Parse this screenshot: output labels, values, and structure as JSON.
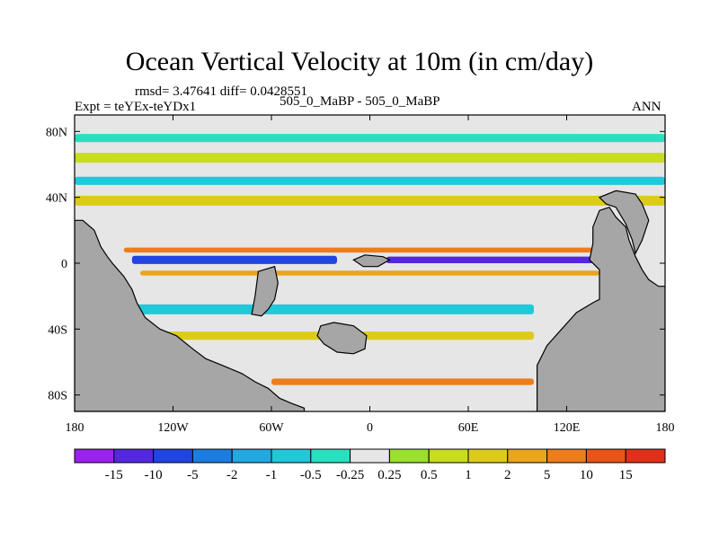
{
  "chart_data": {
    "type": "heatmap",
    "title": "Ocean Vertical Velocity at 10m (in cm/day)",
    "stats": "rmsd= 3.47641 diff= 0.0428551",
    "experiment": "Expt = teYEx-teYDx1",
    "case": "505_0_MaBP - 505_0_MaBP",
    "season": "ANN",
    "xlim": [
      -180,
      180
    ],
    "ylim": [
      -90,
      90
    ],
    "x_ticks": [
      {
        "value": -180,
        "label": "180"
      },
      {
        "value": -120,
        "label": "120W"
      },
      {
        "value": -60,
        "label": "60W"
      },
      {
        "value": 0,
        "label": "0"
      },
      {
        "value": 60,
        "label": "60E"
      },
      {
        "value": 120,
        "label": "120E"
      },
      {
        "value": 180,
        "label": "180"
      }
    ],
    "y_ticks": [
      {
        "value": 80,
        "label": "80N"
      },
      {
        "value": 40,
        "label": "40N"
      },
      {
        "value": 0,
        "label": "0"
      },
      {
        "value": -40,
        "label": "40S"
      },
      {
        "value": -80,
        "label": "80S"
      }
    ],
    "colorbar": {
      "colors": [
        "#9b22ee",
        "#5528e0",
        "#2045e0",
        "#1b7ddf",
        "#23a8e0",
        "#21c8d8",
        "#28e0c0",
        "#e6e6e6",
        "#9ae030",
        "#c8dc20",
        "#dccb1b",
        "#e9a51c",
        "#ec7d1d",
        "#e85519",
        "#e0301a"
      ],
      "labels": [
        "-15",
        "-10",
        "-5",
        "-2",
        "-1",
        "-0.5",
        "-0.25",
        "0.25",
        "0.5",
        "1",
        "2",
        "5",
        "10",
        "15"
      ]
    },
    "land_color": "#a6a6a6",
    "land_regions": [
      {
        "name": "land-west-continent",
        "polygon": [
          [
            -180,
            26
          ],
          [
            -175,
            26
          ],
          [
            -168,
            20
          ],
          [
            -164,
            10
          ],
          [
            -160,
            4
          ],
          [
            -157,
            0
          ],
          [
            -150,
            -8
          ],
          [
            -145,
            -16
          ],
          [
            -142,
            -24
          ],
          [
            -137,
            -33
          ],
          [
            -128,
            -40
          ],
          [
            -118,
            -44
          ],
          [
            -108,
            -52
          ],
          [
            -100,
            -58
          ],
          [
            -90,
            -62
          ],
          [
            -78,
            -67
          ],
          [
            -70,
            -72
          ],
          [
            -62,
            -76
          ],
          [
            -55,
            -82
          ],
          [
            -48,
            -85
          ],
          [
            -40,
            -88
          ],
          [
            -40,
            -90
          ],
          [
            -180,
            -90
          ]
        ]
      },
      {
        "name": "land-central-island-south",
        "polygon": [
          [
            -70,
            -20
          ],
          [
            -68,
            -5
          ],
          [
            -58,
            -2
          ],
          [
            -56,
            -12
          ],
          [
            -58,
            -22
          ],
          [
            -62,
            -28
          ],
          [
            -66,
            -32
          ],
          [
            -72,
            -31
          ]
        ]
      },
      {
        "name": "land-central-island-north",
        "polygon": [
          [
            -10,
            2
          ],
          [
            -3,
            5
          ],
          [
            8,
            4
          ],
          [
            12,
            2
          ],
          [
            5,
            -2
          ],
          [
            -4,
            -2
          ]
        ]
      },
      {
        "name": "land-southern-islands",
        "polygon": [
          [
            -30,
            -38
          ],
          [
            -22,
            -36
          ],
          [
            -10,
            -38
          ],
          [
            -2,
            -44
          ],
          [
            -3,
            -52
          ],
          [
            -10,
            -55
          ],
          [
            -20,
            -54
          ],
          [
            -28,
            -49
          ],
          [
            -32,
            -44
          ]
        ]
      },
      {
        "name": "land-east-continent",
        "polygon": [
          [
            102,
            -90
          ],
          [
            102,
            -62
          ],
          [
            108,
            -50
          ],
          [
            117,
            -40
          ],
          [
            126,
            -30
          ],
          [
            136,
            -24
          ],
          [
            140,
            -22
          ],
          [
            140,
            -4
          ],
          [
            134,
            2
          ],
          [
            136,
            12
          ],
          [
            136,
            22
          ],
          [
            140,
            32
          ],
          [
            146,
            34
          ],
          [
            150,
            28
          ],
          [
            156,
            22
          ],
          [
            158,
            14
          ],
          [
            162,
            4
          ],
          [
            166,
            -4
          ],
          [
            170,
            -10
          ],
          [
            176,
            -14
          ],
          [
            180,
            -14
          ],
          [
            180,
            -90
          ]
        ]
      },
      {
        "name": "land-east-ridge",
        "polygon": [
          [
            140,
            40
          ],
          [
            150,
            44
          ],
          [
            162,
            42
          ],
          [
            166,
            36
          ],
          [
            170,
            26
          ],
          [
            166,
            14
          ],
          [
            162,
            6
          ],
          [
            160,
            14
          ],
          [
            156,
            24
          ],
          [
            150,
            34
          ],
          [
            144,
            36
          ]
        ]
      }
    ],
    "anomaly_bands": [
      {
        "name": "band-equator-negative",
        "lon_start": -145,
        "lon_end": -20,
        "lat": 2,
        "width": 5,
        "value": -10
      },
      {
        "name": "band-equator-negative-east",
        "lon_start": 10,
        "lon_end": 140,
        "lat": 2,
        "width": 4,
        "value": -15
      },
      {
        "name": "band-equator-positive",
        "lon_start": -150,
        "lon_end": 140,
        "lat": 8,
        "width": 3,
        "value": 5
      },
      {
        "name": "band-south-equator-positive",
        "lon_start": -140,
        "lon_end": 140,
        "lat": -6,
        "width": 3,
        "value": 2
      },
      {
        "name": "band-midlat-north",
        "lon_start": -180,
        "lon_end": 180,
        "lat": 38,
        "width": 6,
        "value": 1
      },
      {
        "name": "band-midlat-north-negative",
        "lon_start": -180,
        "lon_end": 180,
        "lat": 50,
        "width": 5,
        "value": -1
      },
      {
        "name": "band-subpolar-north",
        "lon_start": -180,
        "lon_end": 180,
        "lat": 64,
        "width": 6,
        "value": 0.5
      },
      {
        "name": "band-arctic-negative",
        "lon_start": -180,
        "lon_end": 180,
        "lat": 76,
        "width": 5,
        "value": -0.5
      },
      {
        "name": "band-southern-negative",
        "lon_start": -160,
        "lon_end": 100,
        "lat": -28,
        "width": 6,
        "value": -1
      },
      {
        "name": "band-southern-positive",
        "lon_start": -150,
        "lon_end": 100,
        "lat": -44,
        "width": 5,
        "value": 1
      },
      {
        "name": "band-antarctic-positive",
        "lon_start": -60,
        "lon_end": 100,
        "lat": -72,
        "width": 4,
        "value": 5
      }
    ]
  }
}
